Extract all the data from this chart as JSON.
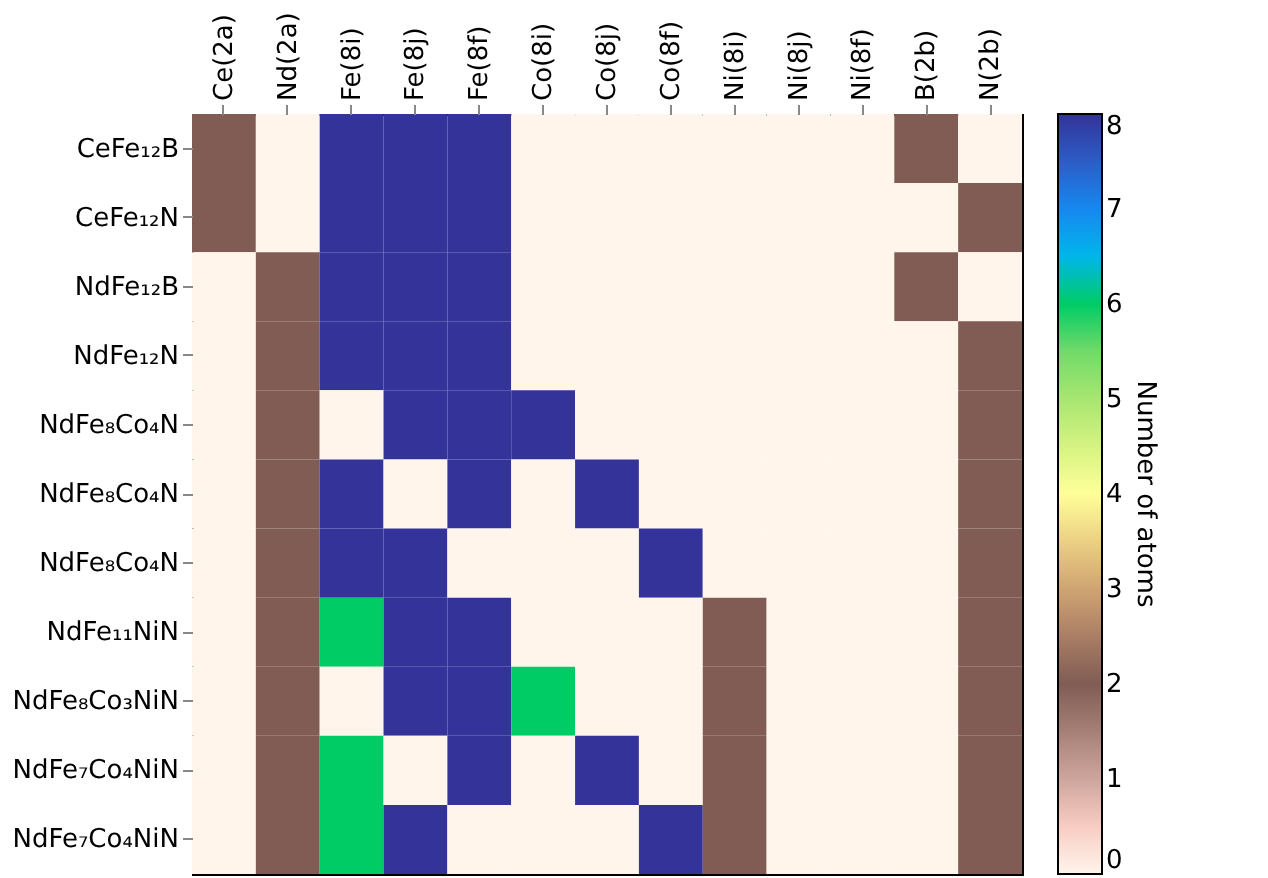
{
  "chart_data": {
    "type": "heatmap",
    "clabel": "Number of atoms",
    "categories": [
      "Ce(2a)",
      "Nd(2a)",
      "Fe(8i)",
      "Fe(8j)",
      "Fe(8f)",
      "Co(8i)",
      "Co(8j)",
      "Co(8f)",
      "Ni(8i)",
      "Ni(8j)",
      "Ni(8f)",
      "B(2b)",
      "N(2b)"
    ],
    "y_categories": [
      "CeFe₁₂B",
      "CeFe₁₂N",
      "NdFe₁₂B",
      "NdFe₁₂N",
      "NdFe₈Co₄N",
      "NdFe₈Co₄N",
      "NdFe₈Co₄N",
      "NdFe₁₁NiN",
      "NdFe₈Co₃NiN",
      "NdFe₇Co₄NiN",
      "NdFe₇Co₄NiN"
    ],
    "cells": [
      [
        2,
        0,
        8,
        8,
        8,
        0,
        0,
        0,
        0,
        0,
        0,
        2,
        0
      ],
      [
        2,
        0,
        8,
        8,
        8,
        0,
        0,
        0,
        0,
        0,
        0,
        0,
        2
      ],
      [
        0,
        2,
        8,
        8,
        8,
        0,
        0,
        0,
        0,
        0,
        0,
        2,
        0
      ],
      [
        0,
        2,
        8,
        8,
        8,
        0,
        0,
        0,
        0,
        0,
        0,
        0,
        2
      ],
      [
        0,
        2,
        0,
        8,
        8,
        8,
        0,
        0,
        0,
        0,
        0,
        0,
        2
      ],
      [
        0,
        2,
        8,
        0,
        8,
        0,
        8,
        0,
        0,
        0,
        0,
        0,
        2
      ],
      [
        0,
        2,
        8,
        8,
        0,
        0,
        0,
        8,
        0,
        0,
        0,
        0,
        2
      ],
      [
        0,
        2,
        6,
        8,
        8,
        0,
        0,
        0,
        2,
        0,
        0,
        0,
        2
      ],
      [
        0,
        2,
        0,
        8,
        8,
        6,
        0,
        0,
        2,
        0,
        0,
        0,
        2
      ],
      [
        0,
        2,
        6,
        0,
        8,
        0,
        8,
        0,
        2,
        0,
        0,
        0,
        2
      ],
      [
        0,
        2,
        6,
        8,
        0,
        0,
        0,
        8,
        2,
        0,
        0,
        0,
        2
      ]
    ],
    "clim": [
      0,
      8
    ],
    "cticks": [
      0,
      1,
      2,
      3,
      4,
      5,
      6,
      7,
      8
    ],
    "grid": false
  }
}
